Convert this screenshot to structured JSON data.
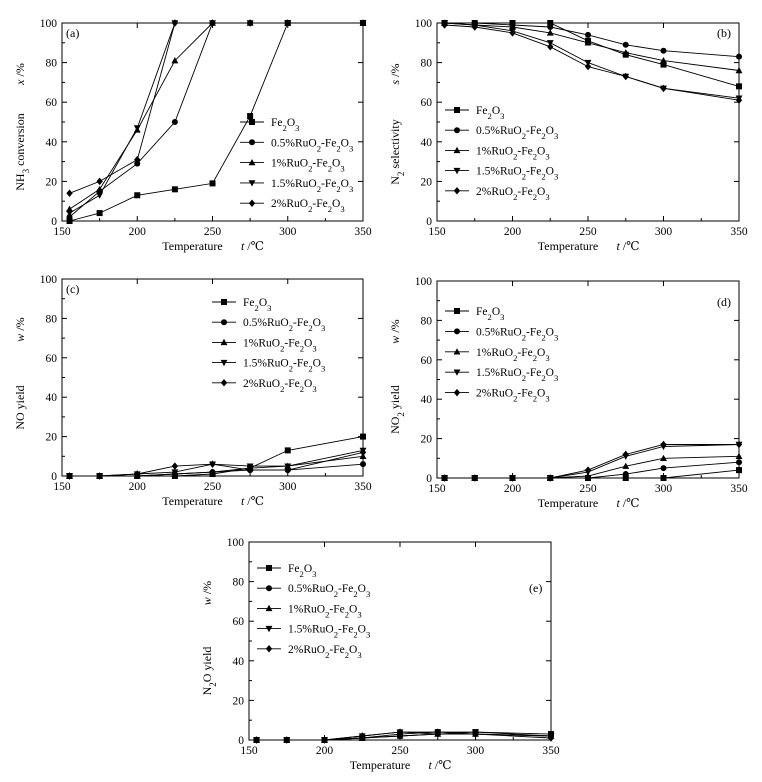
{
  "chart_data": [
    {
      "type": "line",
      "panel": "(a)",
      "ylabel": "NH3 conversion",
      "ylabel_sym": "x /%",
      "xlabel": "Temperature",
      "xlabel_sym": "t /℃",
      "xlim": [
        150,
        350
      ],
      "ylim": [
        0,
        100
      ],
      "xticks": [
        150,
        200,
        250,
        300,
        350
      ],
      "yticks": [
        0,
        20,
        40,
        60,
        80,
        100
      ],
      "legend_position": "middle-right",
      "x": [
        155,
        175,
        200,
        225,
        250,
        275,
        300,
        350
      ],
      "series": [
        {
          "name": "Fe2O3",
          "marker": "square",
          "values": [
            0,
            4,
            13,
            16,
            19,
            53,
            100,
            100
          ]
        },
        {
          "name": "0.5%RuO2-Fe2O3",
          "marker": "circle",
          "values": [
            2,
            15,
            29,
            50,
            100,
            100,
            100,
            100
          ]
        },
        {
          "name": "1%RuO2-Fe2O3",
          "marker": "triangle-up",
          "values": [
            6,
            16,
            46,
            81,
            100,
            100,
            100,
            100
          ]
        },
        {
          "name": "1.5%RuO2-Fe2O3",
          "marker": "triangle-down",
          "values": [
            4,
            13,
            47,
            100,
            100,
            100,
            100,
            100
          ]
        },
        {
          "name": "2%RuO2-Fe2O3",
          "marker": "diamond",
          "values": [
            14,
            20,
            31,
            100,
            100,
            100,
            100,
            100
          ]
        }
      ]
    },
    {
      "type": "line",
      "panel": "(b)",
      "ylabel": "N2 selectivity",
      "ylabel_sym": "s /%",
      "xlabel": "Temperature",
      "xlabel_sym": "t /℃",
      "xlim": [
        150,
        350
      ],
      "ylim": [
        0,
        100
      ],
      "xticks": [
        150,
        200,
        250,
        300,
        350
      ],
      "yticks": [
        0,
        20,
        40,
        60,
        80,
        100
      ],
      "legend_position": "bottom-left",
      "x": [
        155,
        175,
        200,
        225,
        250,
        275,
        300,
        350
      ],
      "series": [
        {
          "name": "Fe2O3",
          "marker": "square",
          "values": [
            100,
            100,
            100,
            100,
            91,
            84,
            79,
            68
          ]
        },
        {
          "name": "0.5%RuO2-Fe2O3",
          "marker": "circle",
          "values": [
            100,
            100,
            99,
            98,
            94,
            89,
            86,
            83
          ]
        },
        {
          "name": "1%RuO2-Fe2O3",
          "marker": "triangle-up",
          "values": [
            100,
            99,
            98,
            95,
            90,
            85,
            81,
            76
          ]
        },
        {
          "name": "1.5%RuO2-Fe2O3",
          "marker": "triangle-down",
          "values": [
            100,
            99,
            96,
            90,
            80,
            73,
            67,
            62
          ]
        },
        {
          "name": "2%RuO2-Fe2O3",
          "marker": "diamond",
          "values": [
            99,
            98,
            95,
            88,
            78,
            73,
            67,
            61
          ]
        }
      ]
    },
    {
      "type": "line",
      "panel": "(c)",
      "ylabel": "NO yield",
      "ylabel_sym": "w /%",
      "xlabel": "Temperature",
      "xlabel_sym": "t /℃",
      "xlim": [
        150,
        350
      ],
      "ylim": [
        0,
        100
      ],
      "xticks": [
        150,
        200,
        250,
        300,
        350
      ],
      "yticks": [
        0,
        20,
        40,
        60,
        80,
        100
      ],
      "legend_position": "top-right",
      "x": [
        155,
        175,
        200,
        225,
        250,
        275,
        300,
        350
      ],
      "series": [
        {
          "name": "Fe2O3",
          "marker": "square",
          "values": [
            0,
            0,
            0,
            0,
            1,
            4,
            13,
            20
          ]
        },
        {
          "name": "0.5%RuO2-Fe2O3",
          "marker": "circle",
          "values": [
            0,
            0,
            0,
            1,
            2,
            3,
            3,
            6
          ]
        },
        {
          "name": "1%RuO2-Fe2O3",
          "marker": "triangle-up",
          "values": [
            0,
            0,
            0,
            1,
            2,
            4,
            5,
            10
          ]
        },
        {
          "name": "1.5%RuO2-Fe2O3",
          "marker": "triangle-down",
          "values": [
            0,
            0,
            1,
            2,
            6,
            5,
            5,
            13
          ]
        },
        {
          "name": "2%RuO2-Fe2O3",
          "marker": "diamond",
          "values": [
            0,
            0,
            1,
            5,
            6,
            3,
            3,
            12
          ]
        }
      ]
    },
    {
      "type": "line",
      "panel": "(d)",
      "ylabel": "NO2 yield",
      "ylabel_sym": "w /%",
      "xlabel": "Temperature",
      "xlabel_sym": "t /℃",
      "xlim": [
        150,
        350
      ],
      "ylim": [
        0,
        100
      ],
      "xticks": [
        150,
        200,
        250,
        300,
        350
      ],
      "yticks": [
        0,
        20,
        40,
        60,
        80,
        100
      ],
      "legend_position": "top-left",
      "x": [
        155,
        175,
        200,
        225,
        250,
        275,
        300,
        350
      ],
      "series": [
        {
          "name": "Fe2O3",
          "marker": "square",
          "values": [
            0,
            0,
            0,
            0,
            0,
            0,
            0,
            4
          ]
        },
        {
          "name": "0.5%RuO2-Fe2O3",
          "marker": "circle",
          "values": [
            0,
            0,
            0,
            0,
            0,
            2,
            5,
            8
          ]
        },
        {
          "name": "1%RuO2-Fe2O3",
          "marker": "triangle-up",
          "values": [
            0,
            0,
            0,
            0,
            1,
            6,
            10,
            11
          ]
        },
        {
          "name": "1.5%RuO2-Fe2O3",
          "marker": "triangle-down",
          "values": [
            0,
            0,
            0,
            0,
            3,
            11,
            16,
            17
          ]
        },
        {
          "name": "2%RuO2-Fe2O3",
          "marker": "diamond",
          "values": [
            0,
            0,
            0,
            0,
            4,
            12,
            17,
            17
          ]
        }
      ]
    },
    {
      "type": "line",
      "panel": "(e)",
      "ylabel": "N2O yield",
      "ylabel_sym": "w /%",
      "xlabel": "Temperature",
      "xlabel_sym": "t /℃",
      "xlim": [
        150,
        350
      ],
      "ylim": [
        0,
        100
      ],
      "xticks": [
        150,
        200,
        250,
        300,
        350
      ],
      "yticks": [
        0,
        20,
        40,
        60,
        80,
        100
      ],
      "legend_position": "top-left",
      "x": [
        155,
        175,
        200,
        225,
        250,
        275,
        300,
        350
      ],
      "series": [
        {
          "name": "Fe2O3",
          "marker": "square",
          "values": [
            0,
            0,
            0,
            1,
            3,
            4,
            4,
            3
          ]
        },
        {
          "name": "0.5%RuO2-Fe2O3",
          "marker": "circle",
          "values": [
            0,
            0,
            0,
            1,
            2,
            3,
            3,
            2
          ]
        },
        {
          "name": "1%RuO2-Fe2O3",
          "marker": "triangle-up",
          "values": [
            0,
            0,
            0,
            1,
            2,
            3,
            3,
            2
          ]
        },
        {
          "name": "1.5%RuO2-Fe2O3",
          "marker": "triangle-down",
          "values": [
            0,
            0,
            0,
            2,
            4,
            3,
            4,
            2
          ]
        },
        {
          "name": "2%RuO2-Fe2O3",
          "marker": "diamond",
          "values": [
            0,
            0,
            0,
            2,
            4,
            4,
            3,
            1
          ]
        }
      ]
    }
  ]
}
